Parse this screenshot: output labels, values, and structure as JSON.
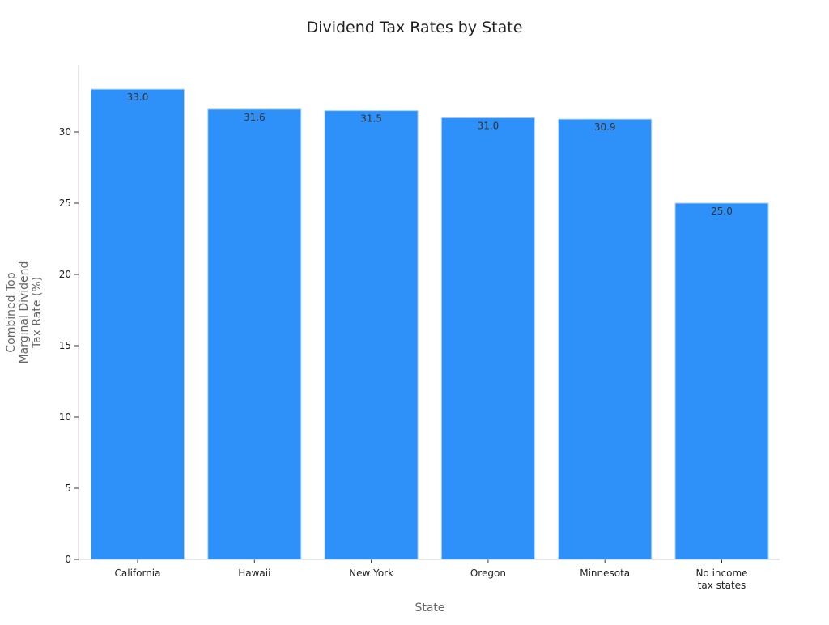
{
  "chart_data": {
    "type": "bar",
    "title": "Dividend Tax Rates by State",
    "xlabel": "State",
    "ylabel": [
      "Combined Top",
      "Marginal Dividend",
      "Tax Rate (%)"
    ],
    "categories": [
      [
        "California"
      ],
      [
        "Hawaii"
      ],
      [
        "New York"
      ],
      [
        "Oregon"
      ],
      [
        "Minnesota"
      ],
      [
        "No income",
        "tax states"
      ]
    ],
    "values": [
      33.0,
      31.6,
      31.5,
      31.0,
      30.9,
      25.0
    ],
    "data_labels": [
      "33.0",
      "31.6",
      "31.5",
      "31.0",
      "30.9",
      "25.0"
    ],
    "ylim": [
      0,
      34.7
    ],
    "yticks": [
      0,
      5,
      10,
      15,
      20,
      25,
      30
    ],
    "grid": false,
    "bar_color": "#2E91F9",
    "bar_edge_color": "#A9D3FF",
    "label_color": "#333333"
  }
}
